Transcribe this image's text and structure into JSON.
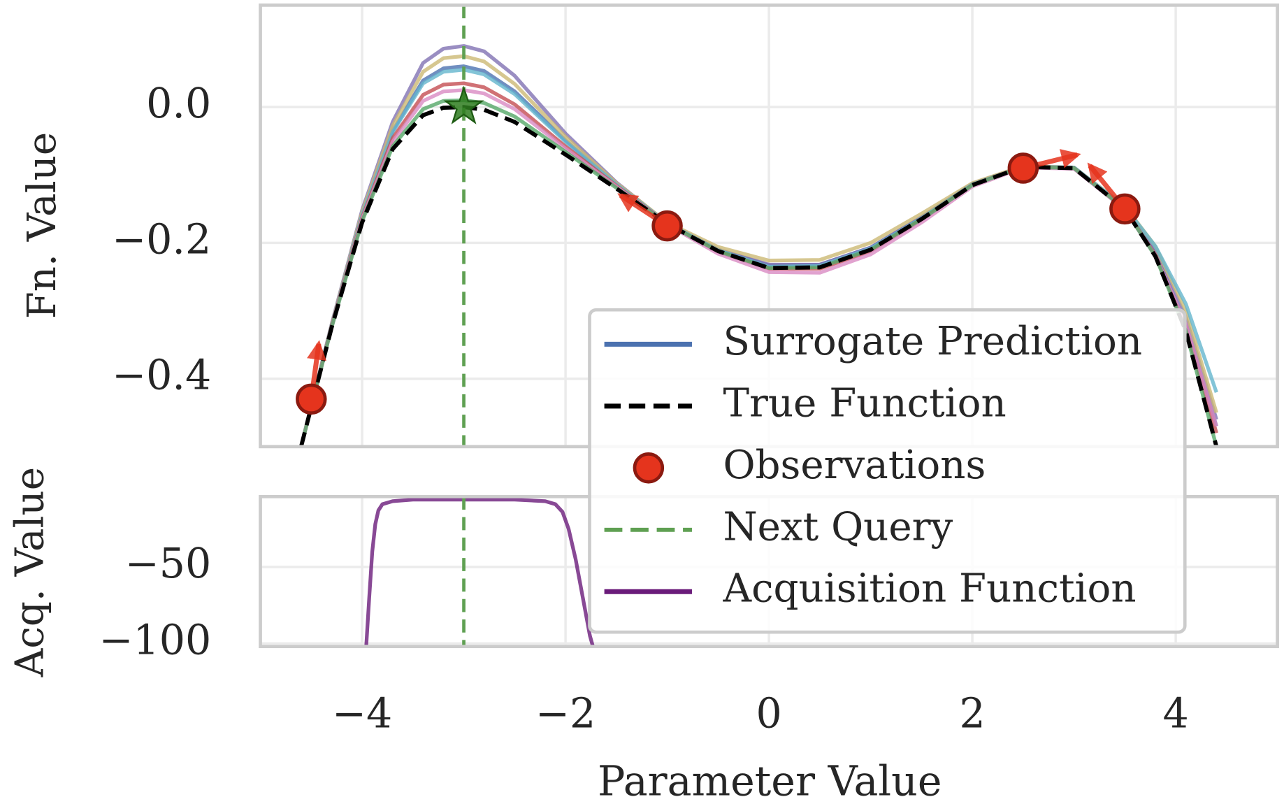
{
  "chart_data": [
    {
      "type": "line",
      "ylabel": "Fn. Value",
      "ylim": [
        -0.5,
        0.15
      ],
      "yticks": [
        {
          "value": 0,
          "label": "0.0"
        },
        {
          "value": -0.2,
          "label": "−0.2"
        },
        {
          "value": -0.4,
          "label": "−0.4"
        }
      ],
      "grid": true,
      "legend": "lower right",
      "x": [
        -4.6,
        -4.3,
        -4,
        -3.7,
        -3.4,
        -3.2,
        -3,
        -2.8,
        -2.5,
        -2,
        -1.5,
        -1,
        -0.5,
        0,
        0.5,
        1,
        1.5,
        2,
        2.5,
        3,
        3.5,
        3.8,
        4.1,
        4.4
      ],
      "series": [
        {
          "name": "Surrogate Prediction",
          "color": "#4c72b0",
          "values": [
            -0.5,
            -0.322,
            -0.158,
            -0.035,
            0.039,
            0.057,
            0.06,
            0.053,
            0.023,
            -0.049,
            -0.114,
            -0.171,
            -0.21,
            -0.233,
            -0.232,
            -0.207,
            -0.163,
            -0.114,
            -0.088,
            -0.09,
            -0.149,
            -0.216,
            -0.32,
            -0.47
          ]
        },
        {
          "color": "#8172b3",
          "values": [
            -0.5,
            -0.32,
            -0.152,
            -0.022,
            0.065,
            0.086,
            0.09,
            0.082,
            0.046,
            -0.039,
            -0.111,
            -0.171,
            -0.21,
            -0.232,
            -0.232,
            -0.207,
            -0.162,
            -0.113,
            -0.087,
            -0.089,
            -0.148,
            -0.212,
            -0.31,
            -0.46
          ]
        },
        {
          "color": "#ccb974",
          "values": [
            -0.5,
            -0.321,
            -0.155,
            -0.028,
            0.052,
            0.072,
            0.075,
            0.067,
            0.034,
            -0.044,
            -0.112,
            -0.17,
            -0.206,
            -0.226,
            -0.225,
            -0.2,
            -0.157,
            -0.112,
            -0.087,
            -0.089,
            -0.146,
            -0.205,
            -0.3,
            -0.45
          ]
        },
        {
          "color": "#64b5cd",
          "values": [
            -0.5,
            -0.322,
            -0.159,
            -0.037,
            0.035,
            0.052,
            0.055,
            0.048,
            0.019,
            -0.051,
            -0.114,
            -0.171,
            -0.211,
            -0.235,
            -0.234,
            -0.208,
            -0.164,
            -0.114,
            -0.088,
            -0.089,
            -0.147,
            -0.205,
            -0.29,
            -0.42
          ]
        },
        {
          "color": "#c44e52",
          "values": [
            -0.5,
            -0.323,
            -0.163,
            -0.046,
            0.018,
            0.033,
            0.035,
            0.029,
            0.004,
            -0.058,
            -0.116,
            -0.172,
            -0.213,
            -0.238,
            -0.238,
            -0.212,
            -0.166,
            -0.115,
            -0.088,
            -0.09,
            -0.15,
            -0.218,
            -0.325,
            -0.48
          ]
        },
        {
          "color": "#da8bc3",
          "values": [
            -0.5,
            -0.324,
            -0.165,
            -0.051,
            0.009,
            0.023,
            0.025,
            0.02,
            -0.003,
            -0.061,
            -0.117,
            -0.173,
            -0.216,
            -0.243,
            -0.244,
            -0.217,
            -0.17,
            -0.117,
            -0.089,
            -0.091,
            -0.151,
            -0.219,
            -0.32,
            -0.47
          ]
        },
        {
          "color": "#55a868",
          "values": [
            -0.5,
            -0.325,
            -0.168,
            -0.058,
            -0.003,
            0.009,
            0.01,
            0.006,
            -0.014,
            -0.066,
            -0.119,
            -0.172,
            -0.212,
            -0.237,
            -0.236,
            -0.21,
            -0.165,
            -0.115,
            -0.088,
            -0.09,
            -0.15,
            -0.22,
            -0.33,
            -0.5
          ]
        },
        {
          "name": "True Function",
          "color": "#000000",
          "dashed": true,
          "values": [
            -0.5,
            -0.325,
            -0.17,
            -0.062,
            -0.012,
            -0.001,
            0,
            -0.004,
            -0.022,
            -0.07,
            -0.12,
            -0.172,
            -0.212,
            -0.237,
            -0.236,
            -0.21,
            -0.165,
            -0.115,
            -0.088,
            -0.09,
            -0.15,
            -0.22,
            -0.33,
            -0.5
          ]
        }
      ],
      "observations": {
        "name": "Observations",
        "color": "#e5341d",
        "x": [
          -4.5,
          -1,
          2.5,
          3.5
        ],
        "values": [
          -0.43,
          -0.175,
          -0.09,
          -0.15
        ],
        "gradients": [
          1.1,
          -0.098,
          0.037,
          -0.185
        ]
      },
      "next_query": {
        "name": "Next Query",
        "color": "#5fa052",
        "x": -3,
        "y": 0
      }
    },
    {
      "type": "line",
      "xlabel": "Parameter Value",
      "ylabel": "Acq. Value",
      "xlim": [
        -5,
        5
      ],
      "xticks": [
        {
          "value": -4,
          "label": "−4"
        },
        {
          "value": -2,
          "label": "−2"
        },
        0,
        2,
        4
      ],
      "ylim": [
        -102,
        -4
      ],
      "yticks": [
        {
          "value": -50,
          "label": "−50"
        },
        {
          "value": -100,
          "label": "−100"
        }
      ],
      "grid": true,
      "x": [
        -3.96,
        -3.93,
        -3.9,
        -3.87,
        -3.84,
        -3.8,
        -3.7,
        -3.5,
        -3,
        -2.5,
        -2.2,
        -2.1,
        -2.03,
        -1.97,
        -1.9,
        -1.83,
        -1.76,
        -1.73
      ],
      "series": [
        {
          "name": "Acquisition Function",
          "color": "#6a1b7a",
          "values": [
            -102,
            -70,
            -40,
            -22,
            -13,
            -9,
            -7,
            -6,
            -6,
            -6,
            -7,
            -9,
            -14,
            -25,
            -45,
            -70,
            -95,
            -102
          ]
        }
      ]
    }
  ]
}
